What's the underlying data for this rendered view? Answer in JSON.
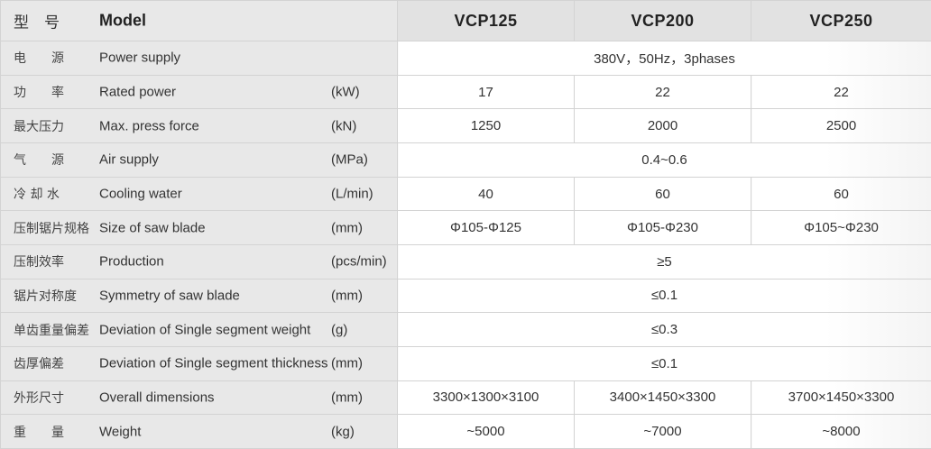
{
  "header": {
    "label_cn": "型　号",
    "label_en": "Model",
    "models": [
      "VCP125",
      "VCP200",
      "VCP250"
    ]
  },
  "rows": [
    {
      "cn": "电　　源",
      "en": "Power supply",
      "unit": "",
      "merged": true,
      "value": "380V，50Hz，3phases"
    },
    {
      "cn": "功　　率",
      "en": "Rated power",
      "unit": "(kW)",
      "merged": false,
      "values": [
        "17",
        "22",
        "22"
      ]
    },
    {
      "cn": "最大压力",
      "en": "Max. press force",
      "unit": "(kN)",
      "merged": false,
      "values": [
        "1250",
        "2000",
        "2500"
      ]
    },
    {
      "cn": "气　　源",
      "en": "Air supply",
      "unit": "(MPa)",
      "merged": true,
      "value": "0.4~0.6"
    },
    {
      "cn": "冷 却 水",
      "en": "Cooling water",
      "unit": "(L/min)",
      "merged": false,
      "values": [
        "40",
        "60",
        "60"
      ]
    },
    {
      "cn": "压制锯片规格",
      "en": "Size of saw blade",
      "unit": "(mm)",
      "merged": false,
      "values": [
        "Φ105-Φ125",
        "Φ105-Φ230",
        "Φ105~Φ230"
      ]
    },
    {
      "cn": "压制效率",
      "en": "Production",
      "unit": "(pcs/min)",
      "merged": true,
      "value": "≥5"
    },
    {
      "cn": "锯片对称度",
      "en": "Symmetry of saw blade",
      "unit": "(mm)",
      "merged": true,
      "value": "≤0.1"
    },
    {
      "cn": "单齿重量偏差",
      "en": "Deviation of Single segment weight",
      "unit": "(g)",
      "merged": true,
      "value": "≤0.3"
    },
    {
      "cn": "齿厚偏差",
      "en": "Deviation of Single segment thickness",
      "unit": "(mm)",
      "merged": true,
      "value": "≤0.1"
    },
    {
      "cn": "外形尺寸",
      "en": "Overall dimensions",
      "unit": "(mm)",
      "merged": false,
      "values": [
        "3300×1300×3100",
        "3400×1450×3300",
        "3700×1450×3300"
      ]
    },
    {
      "cn": "重　　量",
      "en": "Weight",
      "unit": "(kg)",
      "merged": false,
      "values": [
        "~5000",
        "~7000",
        "~8000"
      ]
    }
  ]
}
